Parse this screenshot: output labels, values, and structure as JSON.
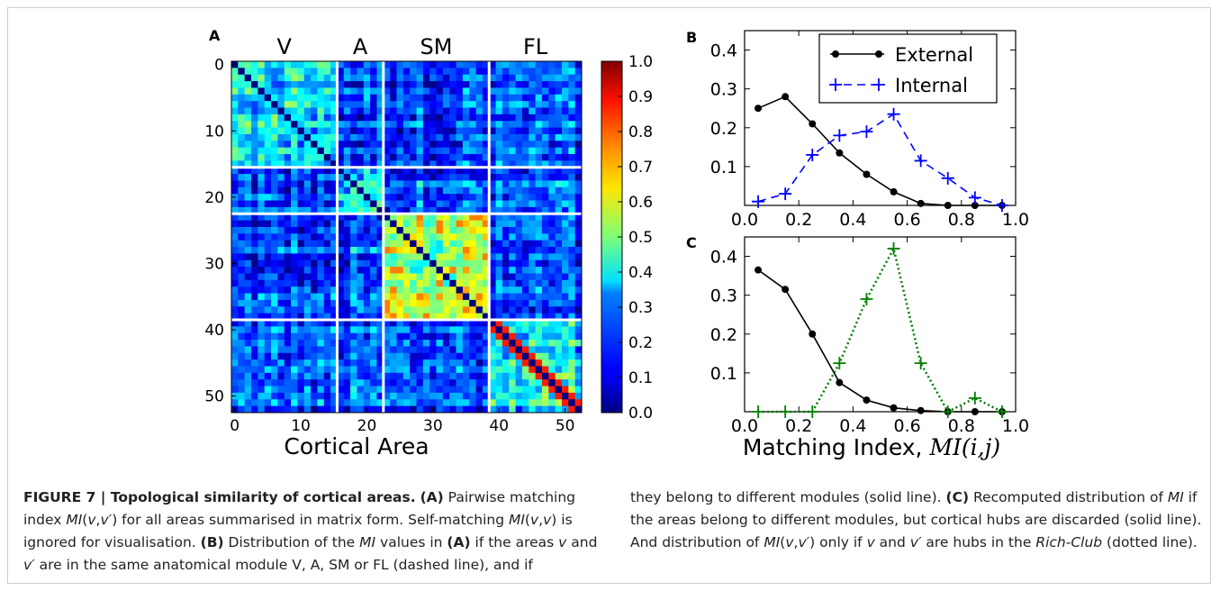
{
  "figure": {
    "panel_a": {
      "letter": "A",
      "modules": [
        "V",
        "A",
        "SM",
        "FL"
      ],
      "module_bounds": [
        0,
        16,
        23,
        39,
        53
      ],
      "xlabel": "Cortical Area",
      "yticks": [
        "0",
        "10",
        "20",
        "30",
        "40",
        "50"
      ],
      "xticks": [
        "0",
        "10",
        "20",
        "30",
        "40",
        "50"
      ],
      "colorbar_ticks": [
        "1.0",
        "0.9",
        "0.8",
        "0.7",
        "0.6",
        "0.5",
        "0.4",
        "0.3",
        "0.2",
        "0.1",
        "0.0"
      ]
    },
    "panel_b": {
      "letter": "B"
    },
    "panel_c": {
      "letter": "C"
    },
    "shared_xlabel": "Matching Index, ",
    "shared_xlabel_math": "MI(i,j)"
  },
  "chart_data": [
    {
      "type": "heatmap",
      "title": "",
      "xlabel": "Cortical Area",
      "ylabel": "",
      "size": 53,
      "groups": [
        {
          "name": "V",
          "start": 0,
          "end": 15
        },
        {
          "name": "A",
          "start": 16,
          "end": 22
        },
        {
          "name": "SM",
          "start": 23,
          "end": 38
        },
        {
          "name": "FL",
          "start": 39,
          "end": 52
        }
      ],
      "within_module_mean": {
        "V": 0.35,
        "A": 0.35,
        "SM": 0.55,
        "FL": 0.35
      },
      "between_module_mean": 0.18,
      "diagonal": 0.0,
      "colorbar_range": [
        0.0,
        1.0
      ],
      "colormap": "jet"
    },
    {
      "type": "line",
      "x": [
        0.05,
        0.15,
        0.25,
        0.35,
        0.45,
        0.55,
        0.65,
        0.75,
        0.85,
        0.95
      ],
      "xlim": [
        0.0,
        1.0
      ],
      "ylim": [
        0.0,
        0.45
      ],
      "yticks": [
        "0.1",
        "0.2",
        "0.3",
        "0.4"
      ],
      "xticks": [
        "0.0",
        "0.2",
        "0.4",
        "0.6",
        "0.8",
        "1.0"
      ],
      "legend": "top-right",
      "series": [
        {
          "name": "External",
          "values": [
            0.25,
            0.28,
            0.21,
            0.135,
            0.08,
            0.035,
            0.005,
            0.0,
            0.0,
            0.0
          ],
          "color": "#000000",
          "style": "solid",
          "marker": "dot"
        },
        {
          "name": "Internal",
          "values": [
            0.01,
            0.03,
            0.13,
            0.18,
            0.19,
            0.235,
            0.115,
            0.07,
            0.02,
            0.0
          ],
          "color": "#0000ff",
          "style": "dashed",
          "marker": "plus"
        }
      ]
    },
    {
      "type": "line",
      "x": [
        0.05,
        0.15,
        0.25,
        0.35,
        0.45,
        0.55,
        0.65,
        0.75,
        0.85,
        0.95
      ],
      "xlim": [
        0.0,
        1.0
      ],
      "ylim": [
        0.0,
        0.45
      ],
      "yticks": [
        "0.1",
        "0.2",
        "0.3",
        "0.4"
      ],
      "xticks": [
        "0.0",
        "0.2",
        "0.4",
        "0.6",
        "0.8",
        "1.0"
      ],
      "series": [
        {
          "values": [
            0.365,
            0.315,
            0.2,
            0.075,
            0.03,
            0.01,
            0.003,
            0.0,
            0.0,
            0.0
          ],
          "color": "#000000",
          "style": "solid",
          "marker": "dot"
        },
        {
          "values": [
            0.0,
            0.0,
            0.0,
            0.125,
            0.29,
            0.42,
            0.125,
            0.0,
            0.035,
            0.0
          ],
          "color": "#008000",
          "style": "dotted",
          "marker": "plus"
        }
      ]
    }
  ],
  "caption": {
    "fig_label": "FIGURE 7 | Topological similarity of cortical areas.",
    "left_html": " <b>(A)</b> Pairwise matching index <i>MI</i>(<i>v</i>,<i>v′</i>) for all areas summarised in matrix form. Self-matching <i>MI</i>(<i>v</i>,<i>v</i>) is ignored for visualisation. <b>(B)</b> Distribution of the <i>MI</i> values in <b>(A)</b> if the areas <i>v</i> and <i>v′</i> are in the same anatomical module V, A, SM or FL (dashed line), and if",
    "right_html": "they belong to different modules (solid line). <b>(C)</b> Recomputed distribution of <i>MI</i> if the areas belong to different modules, but cortical hubs are discarded (solid line). And distribution of <i>MI</i>(<i>v</i>,<i>v′</i>) only if <i>v</i> and <i>v′</i> are hubs in the <i>Rich-Club</i> (dotted line)."
  }
}
